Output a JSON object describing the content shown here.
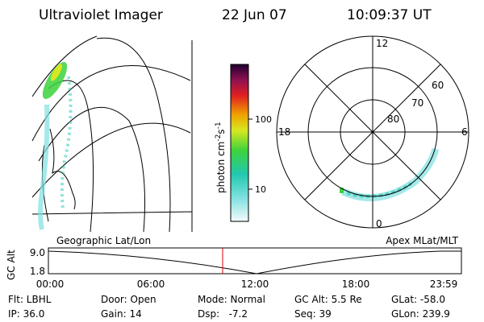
{
  "header": {
    "title": "Ultraviolet Imager",
    "date": "22 Jun 07",
    "time": "10:09:37 UT"
  },
  "colorbar": {
    "label": [
      "photon cm",
      "-2",
      "s",
      "-1"
    ],
    "ticks": [
      "100",
      "10"
    ]
  },
  "left_panel": {
    "label": "Geographic Lat/Lon"
  },
  "polar_panel": {
    "label": "Apex MLat/MLT",
    "hours": [
      "12",
      "18",
      "6",
      "0"
    ],
    "latitudes": [
      "60",
      "70",
      "80"
    ]
  },
  "altitude_plot": {
    "axis_label": "GC Alt",
    "yticks": [
      "9.0",
      "1.8"
    ],
    "xticks": [
      "00:00",
      "06:00",
      "12:00",
      "18:00",
      "23:59"
    ]
  },
  "footer": {
    "rows": [
      [
        "Flt: LBHL",
        "Door: Open",
        "Mode: Normal",
        "GC Alt: 5.5 Re",
        "GLat: -58.0"
      ],
      [
        "IP: 36.0",
        "Gain: 14",
        "Dsp:   -7.2",
        "Seq: 39",
        "GLon: 239.9"
      ]
    ]
  }
}
